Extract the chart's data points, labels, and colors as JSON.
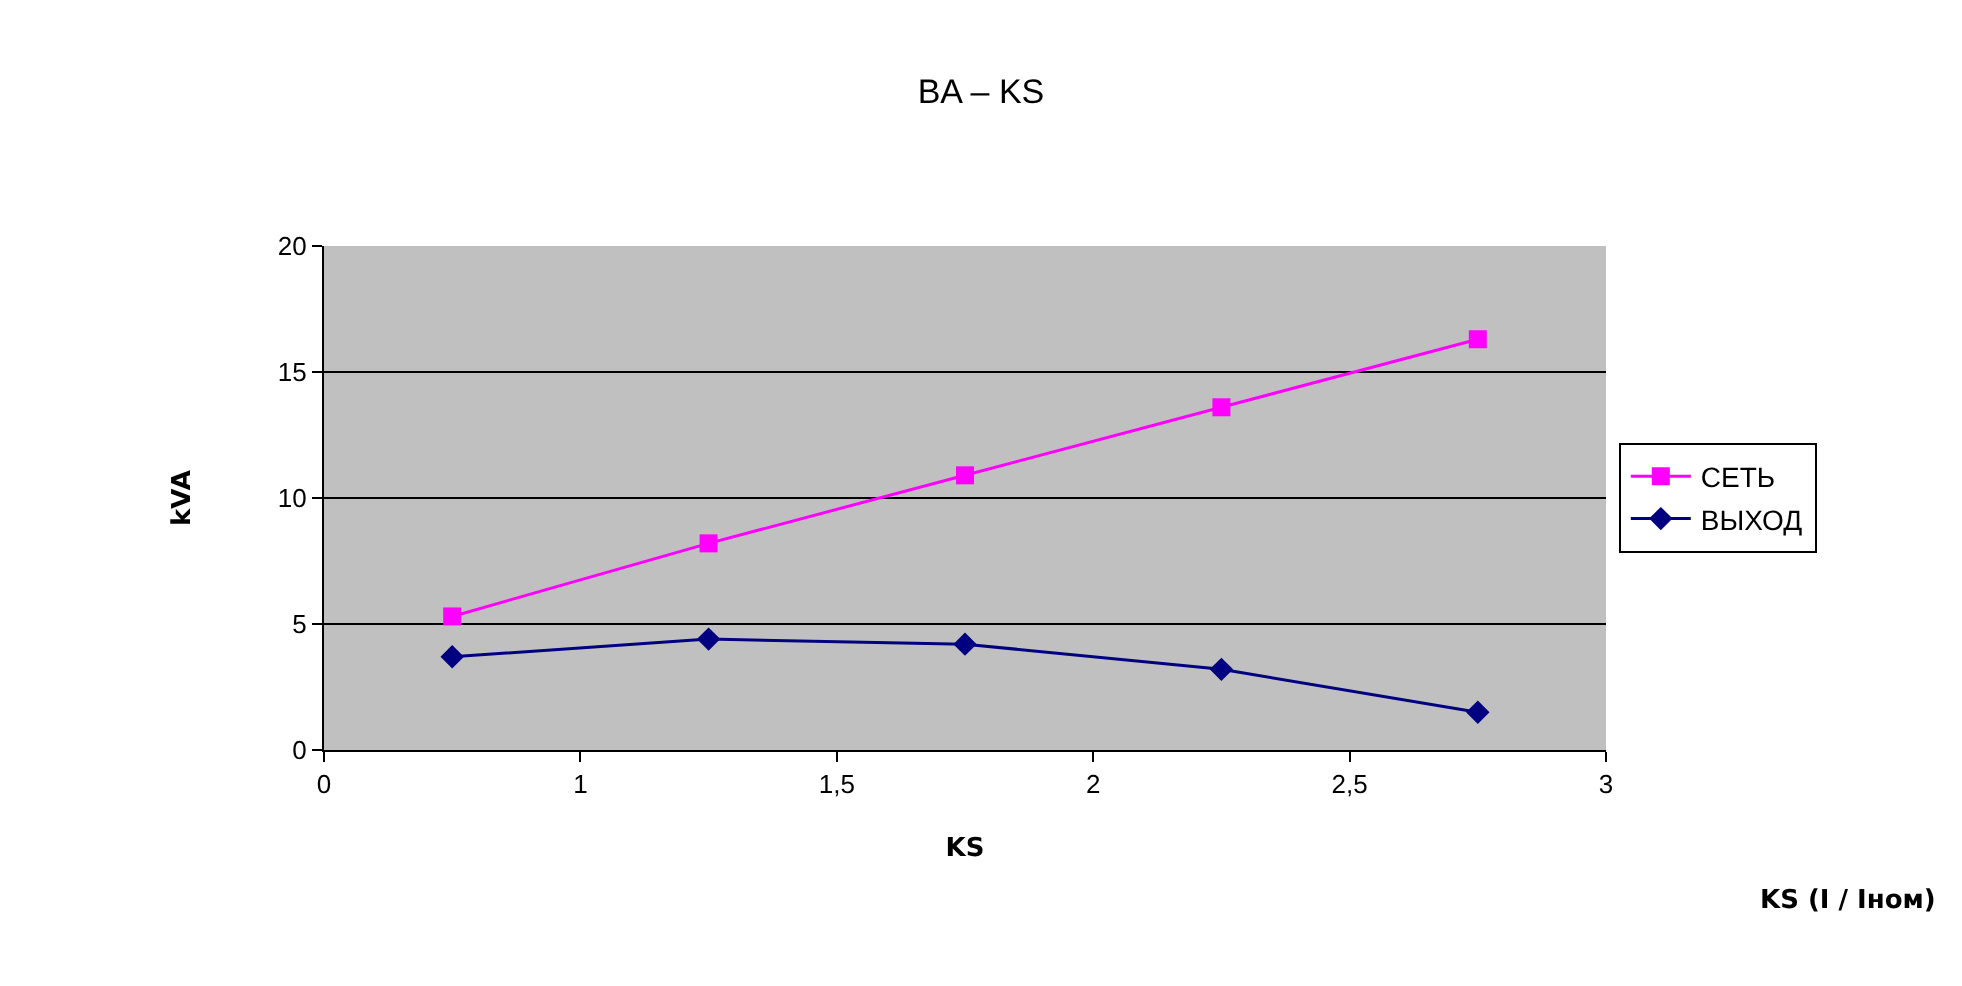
{
  "chart_data": {
    "type": "line",
    "title": "BA – KS",
    "xlabel": "KS",
    "ylabel": "kVA",
    "annotations": [
      "KS (I / Iном)"
    ],
    "x": [
      0.75,
      1.25,
      1.75,
      2.25,
      2.75
    ],
    "series": [
      {
        "name": "СЕТЬ",
        "color": "#ff00ff",
        "marker": "square",
        "values": [
          5.3,
          8.2,
          10.9,
          13.6,
          16.3
        ]
      },
      {
        "name": "ВЫХОД",
        "color": "#000080",
        "marker": "diamond",
        "values": [
          3.7,
          4.4,
          4.2,
          3.2,
          1.5
        ]
      }
    ],
    "xlim": [
      0.5,
      3
    ],
    "xticks": [
      {
        "value": 0.5,
        "label": "0"
      },
      1,
      {
        "value": 1.5,
        "label": "1,5"
      },
      2,
      {
        "value": 2.5,
        "label": "2,5"
      },
      3
    ],
    "ylim": [
      0,
      20
    ],
    "yticks": [
      0,
      5,
      10,
      15,
      20
    ],
    "grid": "y",
    "legend": "right",
    "line_style": "solid"
  }
}
